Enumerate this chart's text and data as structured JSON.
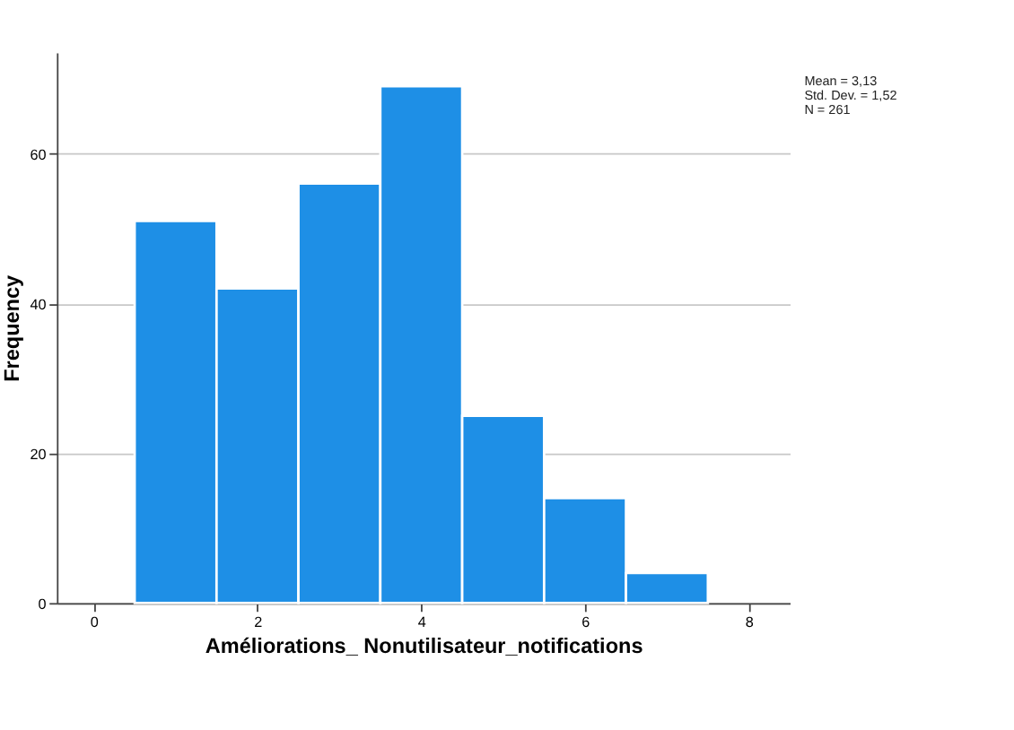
{
  "chart_data": {
    "type": "histogram",
    "xlabel": "Améliorations_ Nonutilisateur_notifications",
    "ylabel": "Frequency",
    "bins": [
      0.5,
      1.5,
      2.5,
      3.5,
      4.5,
      5.5,
      6.5,
      7.5
    ],
    "values": [
      51,
      42,
      56,
      69,
      25,
      14,
      4
    ],
    "color": "#1e8fe6",
    "xlim": [
      -0.45,
      8.5
    ],
    "xticks": [
      0,
      2,
      4,
      6,
      8
    ],
    "ylim": [
      0,
      73.5
    ],
    "yticks": [
      0,
      20,
      40,
      60
    ],
    "grid": "y",
    "annotations": [
      "Mean = 3,13",
      "Std. Dev. = 1,52",
      "N = 261"
    ]
  }
}
